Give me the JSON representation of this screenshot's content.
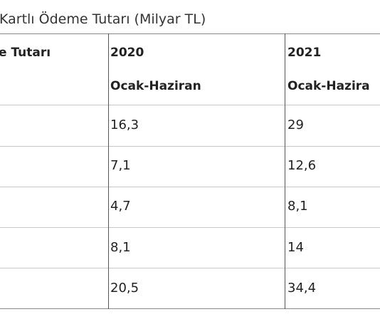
{
  "table": {
    "title": "Kartlı Ödeme Tutarı (Milyar TL)",
    "header": [
      [
        "e Tutarı"
      ],
      [
        "2020",
        "Ocak-Haziran"
      ],
      [
        "2021",
        "Ocak-Hazira"
      ]
    ],
    "rows": [
      [
        "16,3",
        "29"
      ],
      [
        "7,1",
        "12,6"
      ],
      [
        "4,7",
        "8,1"
      ],
      [
        "8,1",
        "14"
      ],
      [
        "20,5",
        "34,4"
      ]
    ]
  }
}
